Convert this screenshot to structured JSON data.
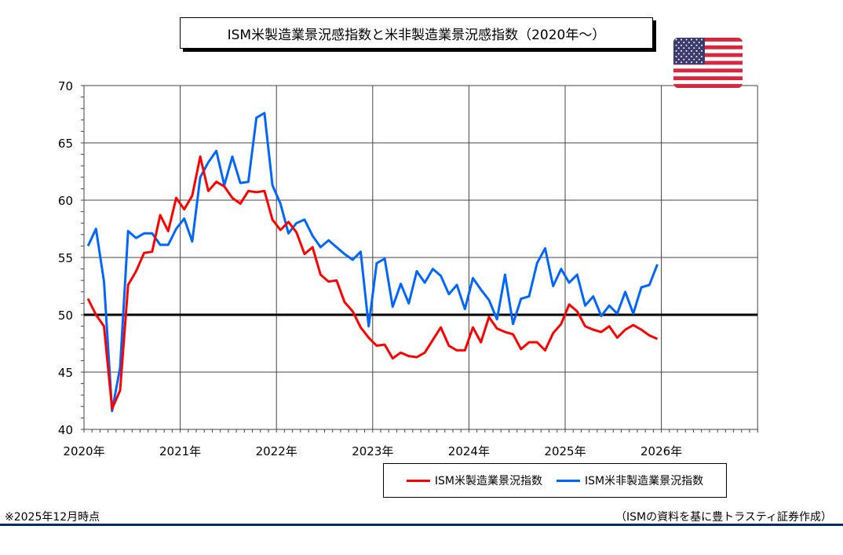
{
  "chart_data": {
    "type": "line",
    "title": "ISM米製造業景況感指数と米非製造業景況感指数（2020年～）",
    "xlabel": "",
    "ylabel": "",
    "ylim": [
      40,
      70
    ],
    "yticks": [
      "40",
      "45",
      "50",
      "55",
      "60",
      "65",
      "70"
    ],
    "xticks": [
      "2020年",
      "2021年",
      "2022年",
      "2023年",
      "2024年",
      "2025年",
      "2026年"
    ],
    "x_start": "2020-01",
    "reference_line": 50,
    "grid": true,
    "legend_position": "bottom-right",
    "series": [
      {
        "name": "ISM米製造業景況指数",
        "color": "#ff0000",
        "values": [
          51.4,
          50.0,
          49.0,
          41.8,
          43.4,
          52.6,
          53.8,
          55.4,
          55.5,
          58.7,
          57.3,
          60.2,
          59.2,
          60.4,
          63.8,
          60.8,
          61.6,
          61.2,
          60.2,
          59.7,
          60.8,
          60.7,
          60.8,
          58.3,
          57.4,
          58.1,
          57.2,
          55.3,
          55.9,
          53.5,
          52.9,
          53.0,
          51.1,
          50.3,
          48.9,
          48.0,
          47.3,
          47.4,
          46.2,
          46.7,
          46.4,
          46.3,
          46.7,
          47.8,
          48.9,
          47.3,
          46.9,
          46.9,
          48.9,
          47.6,
          49.8,
          48.8,
          48.5,
          48.3,
          47.0,
          47.6,
          47.6,
          46.9,
          48.4,
          49.2,
          50.9,
          50.3,
          49.0,
          48.7,
          48.5,
          49.0,
          48.0,
          48.7,
          49.1,
          48.7,
          48.2,
          47.9
        ]
      },
      {
        "name": "ISM米非製造業景況指数",
        "color": "#0066ff",
        "values": [
          56.0,
          57.5,
          52.9,
          41.6,
          45.4,
          57.3,
          56.7,
          57.1,
          57.1,
          56.1,
          56.1,
          57.5,
          58.4,
          56.4,
          62.0,
          63.3,
          64.3,
          61.3,
          63.8,
          61.5,
          61.6,
          67.2,
          67.6,
          61.3,
          59.7,
          57.1,
          58.0,
          58.3,
          56.9,
          55.9,
          56.5,
          55.9,
          55.3,
          54.8,
          55.5,
          49.0,
          54.5,
          54.9,
          50.7,
          52.7,
          51.0,
          53.8,
          52.8,
          54.0,
          53.4,
          51.8,
          52.6,
          50.5,
          53.2,
          52.2,
          51.3,
          49.6,
          53.5,
          49.2,
          51.4,
          51.6,
          54.5,
          55.8,
          52.5,
          54.0,
          52.8,
          53.5,
          50.8,
          51.6,
          49.9,
          50.8,
          50.1,
          52.0,
          50.1,
          52.4,
          52.6,
          54.4
        ]
      }
    ]
  },
  "note": "※2025年12月時点",
  "source": "（ISMの資料を基に豊トラスティ証券作成）",
  "flag_icon": "us-flag-icon"
}
